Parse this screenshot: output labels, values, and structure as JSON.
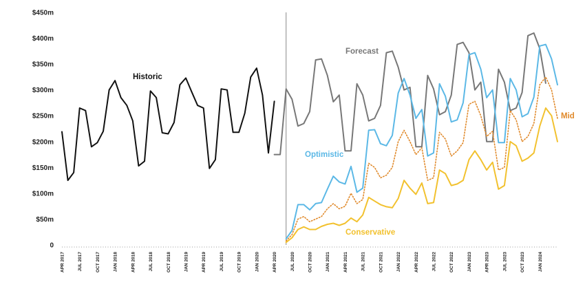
{
  "chart_data": {
    "type": "line",
    "title": "",
    "xlabel": "",
    "ylabel": "",
    "ylim": [
      0,
      450
    ],
    "y_ticks": [
      {
        "value": 0,
        "label": "0"
      },
      {
        "value": 50,
        "label": "$50m"
      },
      {
        "value": 100,
        "label": "$100m"
      },
      {
        "value": 150,
        "label": "$150m"
      },
      {
        "value": 200,
        "label": "$200m"
      },
      {
        "value": 250,
        "label": "$250m"
      },
      {
        "value": 300,
        "label": "$300m"
      },
      {
        "value": 350,
        "label": "$350m"
      },
      {
        "value": 400,
        "label": "$400m"
      },
      {
        "value": 450,
        "label": "$450m"
      }
    ],
    "x_tick_labels": [
      "APR 2017",
      "JUL 2017",
      "OCT 2017",
      "JAN 2018",
      "APR 2018",
      "JUL 2018",
      "OCT 2018",
      "JAN 2019",
      "APR 2019",
      "JUL 2019",
      "OCT 2019",
      "JAN 2020",
      "APR 2020",
      "JUL 2020",
      "OCT 2020",
      "JAN 2021",
      "APR 2021",
      "JUL 2021",
      "OCT 2021",
      "JAN 2022",
      "APR 2022",
      "JUL 2022",
      "OCT 2022",
      "JAN 2023",
      "APR 2023",
      "JUL 2023",
      "OCT 2023",
      "JAN 2024"
    ],
    "x_range": [
      "2017-04",
      "2024-04"
    ],
    "divider_at": "2020-06",
    "grid": false,
    "series": [
      {
        "name": "Historic",
        "color": "#111111",
        "style": "solid",
        "start": "2017-04",
        "values": [
          219,
          125,
          140,
          265,
          260,
          190,
          198,
          220,
          300,
          318,
          285,
          270,
          240,
          153,
          162,
          298,
          285,
          217,
          215,
          237,
          310,
          323,
          296,
          270,
          265,
          148,
          165,
          302,
          300,
          218,
          218,
          255,
          325,
          342,
          290,
          178,
          278
        ]
      },
      {
        "name": "Forecast",
        "color": "#777777",
        "style": "solid",
        "start": "2020-04",
        "values": [
          175,
          175,
          302,
          282,
          230,
          235,
          258,
          358,
          360,
          328,
          277,
          290,
          182,
          182,
          312,
          290,
          240,
          245,
          270,
          372,
          375,
          344,
          300,
          305,
          190,
          190,
          328,
          302,
          252,
          258,
          290,
          388,
          392,
          372,
          300,
          315,
          200,
          200,
          340,
          315,
          260,
          265,
          295,
          405,
          410,
          380,
          313
        ]
      },
      {
        "name": "Optimistic",
        "color": "#5BB8E6",
        "style": "solid",
        "start": "2020-06",
        "values": [
          12,
          28,
          78,
          78,
          68,
          80,
          82,
          108,
          133,
          122,
          118,
          152,
          102,
          110,
          222,
          223,
          196,
          192,
          212,
          294,
          322,
          290,
          245,
          262,
          172,
          178,
          312,
          288,
          238,
          242,
          275,
          368,
          372,
          340,
          285,
          300,
          198,
          198,
          322,
          300,
          248,
          254,
          286,
          385,
          388,
          360,
          310
        ]
      },
      {
        "name": "Mid",
        "color": "#E0892A",
        "style": "dotted",
        "start": "2020-06",
        "values": [
          8,
          20,
          50,
          55,
          45,
          50,
          55,
          70,
          80,
          70,
          75,
          100,
          80,
          88,
          158,
          150,
          130,
          135,
          150,
          200,
          222,
          200,
          175,
          188,
          125,
          130,
          218,
          205,
          172,
          182,
          198,
          272,
          278,
          250,
          210,
          220,
          145,
          150,
          260,
          242,
          200,
          210,
          235,
          310,
          325,
          300,
          245
        ]
      },
      {
        "name": "Conservative",
        "color": "#F2C12E",
        "style": "solid",
        "start": "2020-06",
        "values": [
          5,
          14,
          30,
          35,
          30,
          30,
          36,
          40,
          42,
          38,
          42,
          52,
          45,
          58,
          92,
          85,
          78,
          74,
          72,
          90,
          125,
          110,
          98,
          120,
          80,
          82,
          145,
          138,
          115,
          118,
          125,
          165,
          182,
          165,
          145,
          160,
          108,
          115,
          200,
          192,
          162,
          168,
          178,
          230,
          265,
          250,
          200
        ]
      }
    ],
    "annotations": [
      "Historic",
      "Forecast",
      "Optimistic",
      "Mid",
      "Conservative"
    ]
  }
}
